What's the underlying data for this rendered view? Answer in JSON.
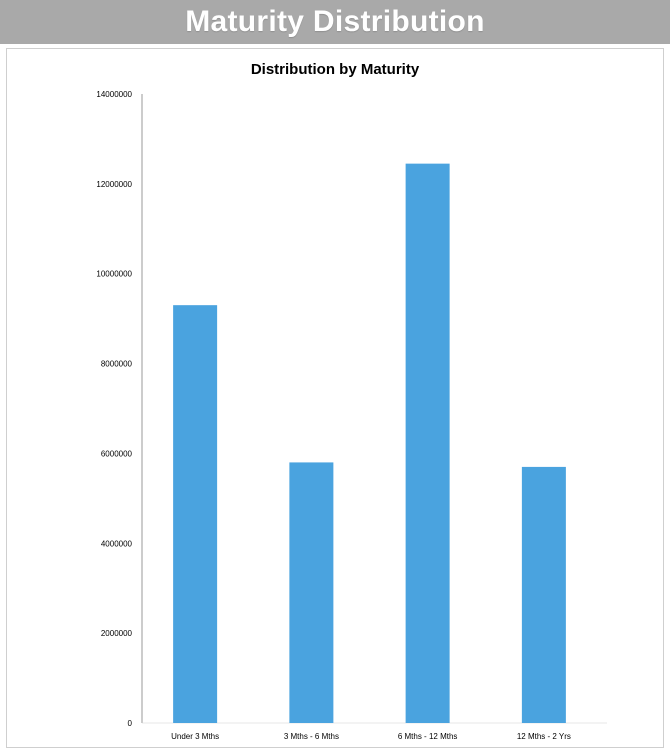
{
  "header": {
    "title": "Maturity Distribution"
  },
  "colors": {
    "bar": "#4aa3df",
    "header_bg": "#a9a9a9",
    "axis": "#999999"
  },
  "chart_data": {
    "type": "bar",
    "title": "Distribution by Maturity",
    "xlabel": "",
    "ylabel": "",
    "categories": [
      "Under 3 Mths",
      "3 Mths - 6 Mths",
      "6 Mths - 12 Mths",
      "12 Mths - 2 Yrs"
    ],
    "values": [
      9300000,
      5800000,
      12450000,
      5700000
    ],
    "ylim": [
      0,
      14000000
    ],
    "yticks": [
      "0",
      "2000000",
      "4000000",
      "6000000",
      "8000000",
      "10000000",
      "12000000",
      "14000000"
    ],
    "grid": false,
    "legend": "none"
  }
}
